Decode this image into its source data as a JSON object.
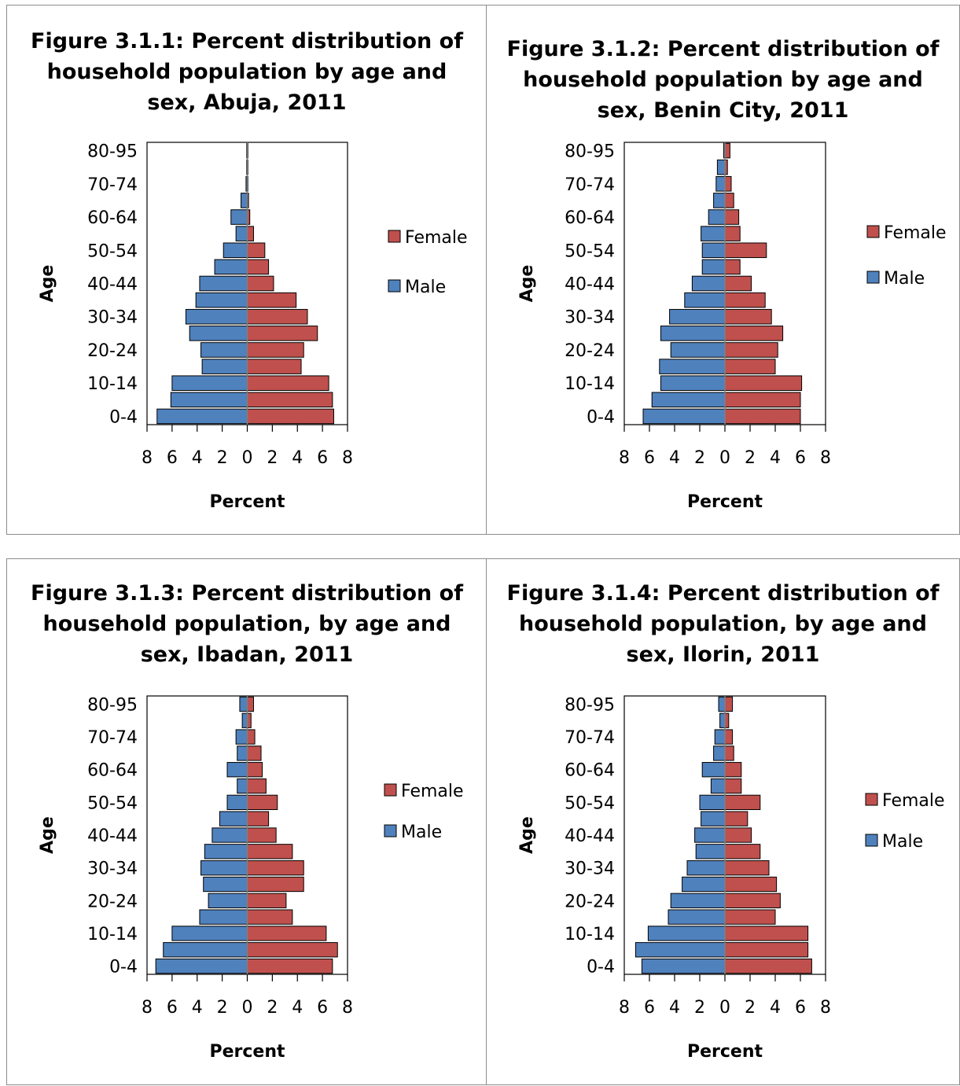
{
  "colors": {
    "female": "#c0504d",
    "male": "#4f81bd",
    "bar_stroke": "#000000",
    "frame": "#8c8c8c"
  },
  "chart_data": [
    {
      "type": "bar",
      "orientation": "horizontal",
      "title": "Figure 3.1.1: Percent distribution of household population by age and sex, Abuja, 2011",
      "title_lines": [
        "Figure 3.1.1: Percent distribution of",
        "household population by age and",
        "sex, Abuja, 2011"
      ],
      "xlabel": "Percent",
      "ylabel": "Age",
      "xlim": [
        -8,
        8
      ],
      "x_ticks": [
        "8",
        "6",
        "4",
        "2",
        "0",
        "2",
        "4",
        "6",
        "8"
      ],
      "categories": [
        "0-4",
        "5-9",
        "10-14",
        "15-19",
        "20-24",
        "25-29",
        "30-34",
        "35-39",
        "40-44",
        "45-49",
        "50-54",
        "55-59",
        "60-64",
        "65-69",
        "70-74",
        "75-79",
        "80-95"
      ],
      "category_labels_shown": [
        "0-4",
        "10-14",
        "20-24",
        "30-34",
        "40-44",
        "50-54",
        "60-64",
        "70-74",
        "80-95"
      ],
      "legend_position": "right",
      "series": [
        {
          "name": "Female",
          "values": [
            6.9,
            6.8,
            6.5,
            4.3,
            4.5,
            5.6,
            4.8,
            3.9,
            2.1,
            1.7,
            1.4,
            0.5,
            0.2,
            0.1,
            0.05,
            0.05,
            0.05
          ]
        },
        {
          "name": "Male",
          "values": [
            -7.2,
            -6.1,
            -6.0,
            -3.6,
            -3.7,
            -4.6,
            -4.9,
            -4.1,
            -3.8,
            -2.6,
            -1.9,
            -0.9,
            -1.3,
            -0.5,
            -0.1,
            -0.05,
            -0.05
          ]
        }
      ]
    },
    {
      "type": "bar",
      "orientation": "horizontal",
      "title": "Figure 3.1.2: Percent distribution of household population by age and sex, Benin City, 2011",
      "title_lines": [
        "Figure 3.1.2: Percent distribution of",
        "household population by age and",
        "sex, Benin City, 2011"
      ],
      "xlabel": "Percent",
      "ylabel": "Age",
      "xlim": [
        -8,
        8
      ],
      "x_ticks": [
        "8",
        "6",
        "4",
        "2",
        "0",
        "2",
        "4",
        "6",
        "8"
      ],
      "categories": [
        "0-4",
        "5-9",
        "10-14",
        "15-19",
        "20-24",
        "25-29",
        "30-34",
        "35-39",
        "40-44",
        "45-49",
        "50-54",
        "55-59",
        "60-64",
        "65-69",
        "70-74",
        "75-79",
        "80-95"
      ],
      "category_labels_shown": [
        "0-4",
        "10-14",
        "20-24",
        "30-34",
        "40-44",
        "50-54",
        "60-64",
        "70-74",
        "80-95"
      ],
      "legend_position": "right",
      "series": [
        {
          "name": "Female",
          "values": [
            6.0,
            6.0,
            6.1,
            4.0,
            4.2,
            4.6,
            3.7,
            3.2,
            2.1,
            1.2,
            3.3,
            1.2,
            1.1,
            0.7,
            0.5,
            0.2,
            0.4
          ]
        },
        {
          "name": "Male",
          "values": [
            -6.5,
            -5.8,
            -5.1,
            -5.2,
            -4.3,
            -5.1,
            -4.4,
            -3.2,
            -2.6,
            -1.8,
            -1.8,
            -1.9,
            -1.3,
            -0.9,
            -0.7,
            -0.6,
            -0.1
          ]
        }
      ]
    },
    {
      "type": "bar",
      "orientation": "horizontal",
      "title": "Figure 3.1.3: Percent distribution of household population, by age and sex, Ibadan, 2011",
      "title_lines": [
        "Figure 3.1.3: Percent distribution of",
        "household population, by age and",
        "sex, Ibadan, 2011"
      ],
      "xlabel": "Percent",
      "ylabel": "Age",
      "xlim": [
        -8,
        8
      ],
      "x_ticks": [
        "8",
        "6",
        "4",
        "2",
        "0",
        "2",
        "4",
        "6",
        "8"
      ],
      "categories": [
        "0-4",
        "5-9",
        "10-14",
        "15-19",
        "20-24",
        "25-29",
        "30-34",
        "35-39",
        "40-44",
        "45-49",
        "50-54",
        "55-59",
        "60-64",
        "65-69",
        "70-74",
        "75-79",
        "80-95"
      ],
      "category_labels_shown": [
        "0-4",
        "10-14",
        "20-24",
        "30-34",
        "40-44",
        "50-54",
        "60-64",
        "70-74",
        "80-95"
      ],
      "legend_position": "right",
      "series": [
        {
          "name": "Female",
          "values": [
            6.8,
            7.2,
            6.3,
            3.6,
            3.1,
            4.5,
            4.5,
            3.6,
            2.3,
            1.7,
            2.4,
            1.5,
            1.2,
            1.1,
            0.6,
            0.3,
            0.5
          ]
        },
        {
          "name": "Male",
          "values": [
            -7.3,
            -6.7,
            -6.0,
            -3.8,
            -3.1,
            -3.5,
            -3.7,
            -3.4,
            -2.8,
            -2.2,
            -1.6,
            -0.8,
            -1.6,
            -0.8,
            -0.9,
            -0.4,
            -0.6
          ]
        }
      ]
    },
    {
      "type": "bar",
      "orientation": "horizontal",
      "title": "Figure 3.1.4: Percent distribution of household population, by age and sex, Ilorin, 2011",
      "title_lines": [
        "Figure 3.1.4: Percent distribution of",
        "household population, by age and",
        "sex, Ilorin, 2011"
      ],
      "xlabel": "Percent",
      "ylabel": "Age",
      "xlim": [
        -8,
        8
      ],
      "x_ticks": [
        "8",
        "6",
        "4",
        "2",
        "0",
        "2",
        "4",
        "6",
        "8"
      ],
      "categories": [
        "0-4",
        "5-9",
        "10-14",
        "15-19",
        "20-24",
        "25-29",
        "30-34",
        "35-39",
        "40-44",
        "45-49",
        "50-54",
        "55-59",
        "60-64",
        "65-69",
        "70-74",
        "75-79",
        "80-95"
      ],
      "category_labels_shown": [
        "0-4",
        "10-14",
        "20-24",
        "30-34",
        "40-44",
        "50-54",
        "60-64",
        "70-74",
        "80-95"
      ],
      "legend_position": "right",
      "series": [
        {
          "name": "Female",
          "values": [
            6.9,
            6.6,
            6.6,
            4.0,
            4.4,
            4.1,
            3.5,
            2.8,
            2.1,
            1.8,
            2.8,
            1.3,
            1.3,
            0.7,
            0.6,
            0.3,
            0.6
          ]
        },
        {
          "name": "Male",
          "values": [
            -6.6,
            -7.1,
            -6.1,
            -4.5,
            -4.3,
            -3.4,
            -3.0,
            -2.3,
            -2.4,
            -1.9,
            -2.0,
            -1.1,
            -1.8,
            -0.9,
            -0.8,
            -0.4,
            -0.5
          ]
        }
      ]
    }
  ]
}
